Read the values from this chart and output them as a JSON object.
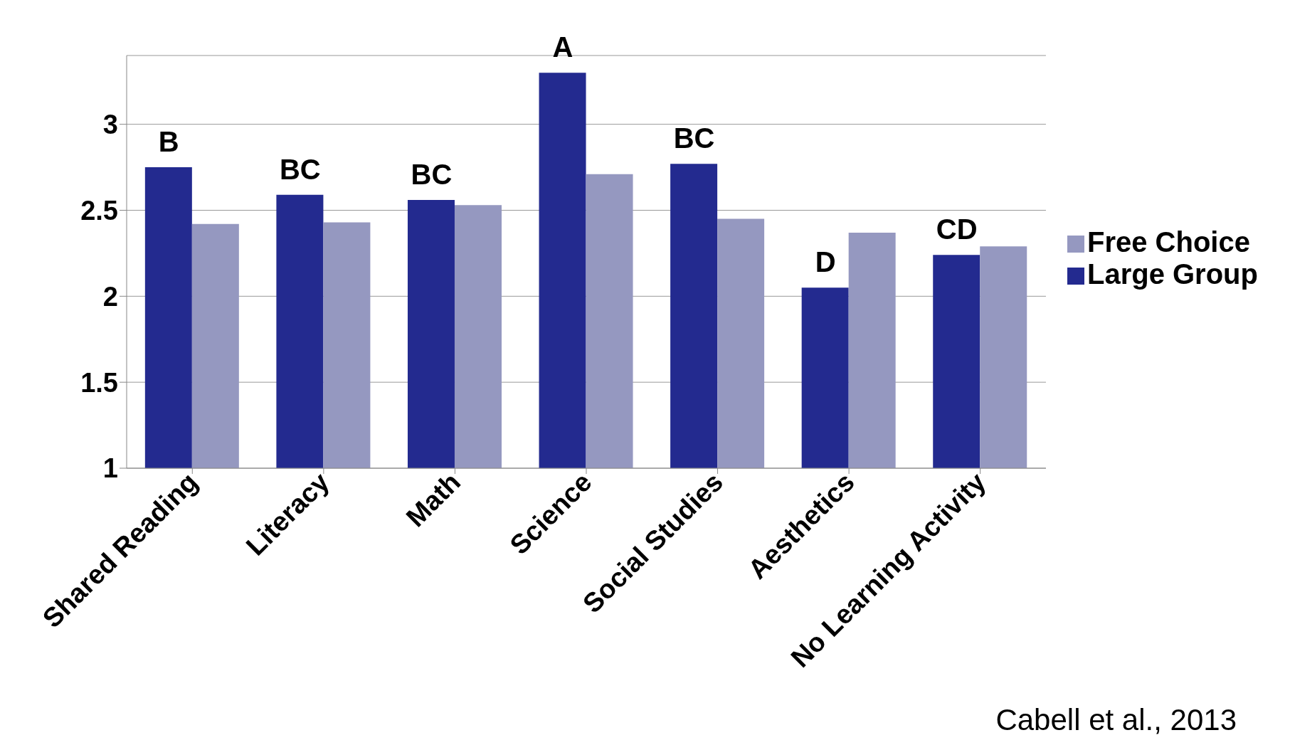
{
  "chart_data": {
    "type": "bar",
    "categories": [
      "Shared Reading",
      "Literacy",
      "Math",
      "Science",
      "Social Studies",
      "Aesthetics",
      "No Learning Activity"
    ],
    "series": [
      {
        "name": "Large Group",
        "color": "#232a8f",
        "values": [
          2.75,
          2.59,
          2.56,
          3.3,
          2.77,
          2.05,
          2.24
        ]
      },
      {
        "name": "Free Choice",
        "color": "#9598c0",
        "values": [
          2.42,
          2.43,
          2.53,
          2.71,
          2.45,
          2.37,
          2.29
        ]
      }
    ],
    "ylim": [
      1,
      3.4
    ],
    "yticks": [
      1,
      1.5,
      2,
      2.5,
      3
    ],
    "grid": "y",
    "legend": "right",
    "annotations": [
      {
        "text": "B",
        "x": "Shared Reading",
        "y": 2.75
      },
      {
        "text": "BC",
        "x": "Literacy",
        "y": 2.59
      },
      {
        "text": "BC",
        "x": "Math",
        "y": 2.56
      },
      {
        "text": "A",
        "x": "Science",
        "y": 3.3
      },
      {
        "text": "BC",
        "x": "Social Studies",
        "y": 2.77
      },
      {
        "text": "D",
        "x": "Aesthetics",
        "y": 2.05
      },
      {
        "text": "CD",
        "x": "No Learning Activity",
        "y": 2.24
      },
      "Cabell et al., 2013"
    ]
  }
}
